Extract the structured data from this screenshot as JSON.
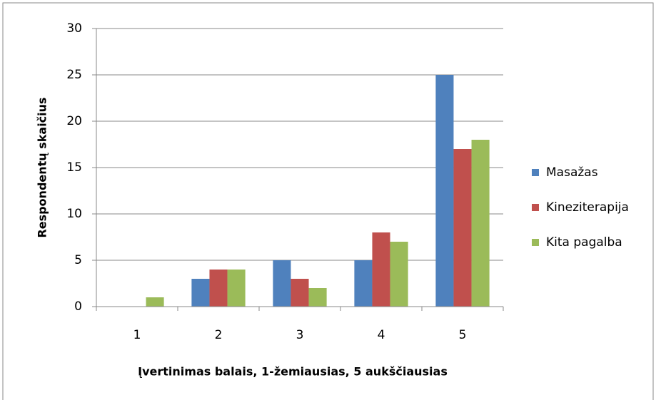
{
  "chart_data": {
    "type": "bar",
    "categories": [
      "1",
      "2",
      "3",
      "4",
      "5"
    ],
    "series": [
      {
        "name": "Masažas",
        "color": "#4f81bd",
        "values": [
          0,
          3,
          5,
          5,
          25
        ]
      },
      {
        "name": "Kineziterapija",
        "color": "#c0504d",
        "values": [
          0,
          4,
          3,
          8,
          17
        ]
      },
      {
        "name": "Kita pagalba",
        "color": "#9bbb59",
        "values": [
          1,
          4,
          2,
          7,
          18
        ]
      }
    ],
    "x_label": "Įvertinimas balais, 1-žemiausias, 5 aukščiausias",
    "y_label": "Respondentų skaičius",
    "ylim": [
      0,
      30
    ],
    "yticks": [
      0,
      5,
      10,
      15,
      20,
      25,
      30
    ],
    "grid": true,
    "legend": "right"
  }
}
